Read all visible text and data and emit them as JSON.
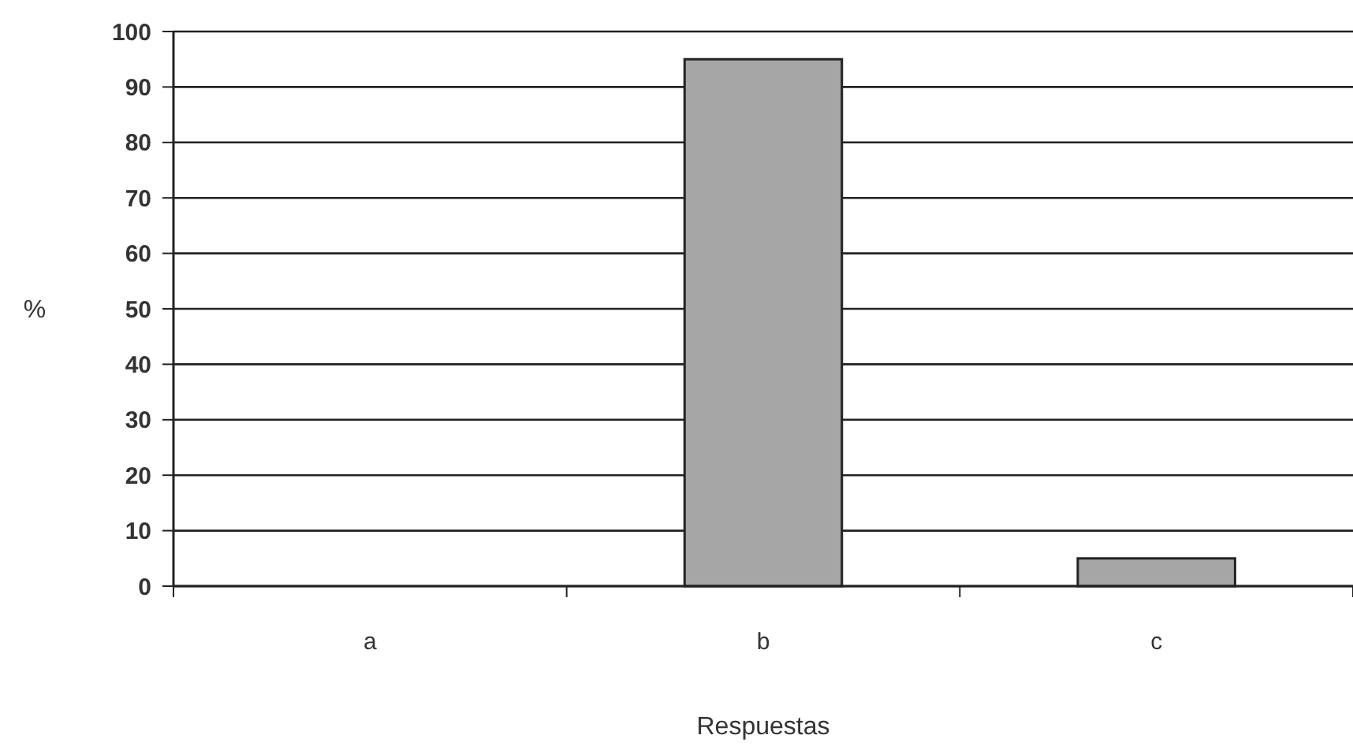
{
  "chart_data": {
    "type": "bar",
    "xlabel": "Respuestas",
    "ylabel": "%",
    "categories": [
      "a",
      "b",
      "c"
    ],
    "values": [
      0,
      95,
      5
    ],
    "color": "#a6a6a6",
    "ylim": [
      0,
      100
    ],
    "yticks": [
      0,
      10,
      20,
      30,
      40,
      50,
      60,
      70,
      80,
      90,
      100
    ],
    "grid": "y"
  }
}
